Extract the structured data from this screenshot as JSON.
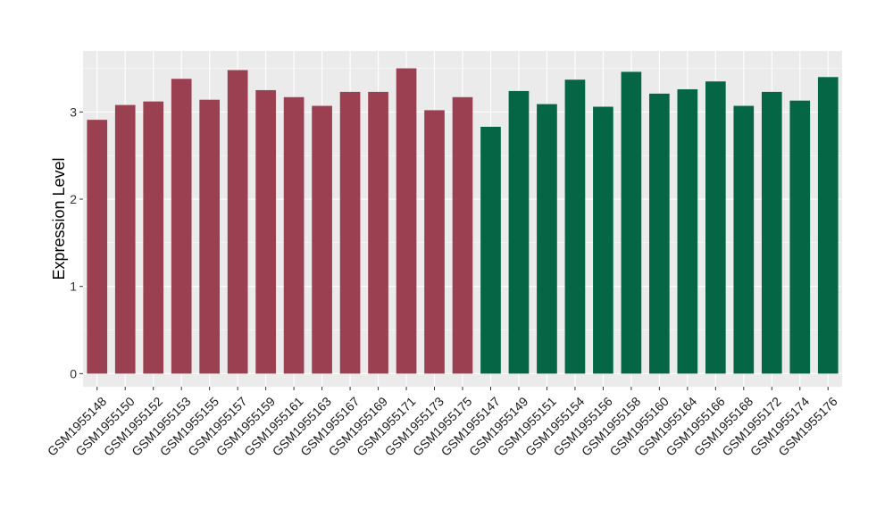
{
  "chart_data": {
    "type": "bar",
    "title": "",
    "xlabel": "",
    "ylabel": "Expression Level",
    "ylim": [
      -0.15,
      3.7
    ],
    "yticks": [
      0,
      1,
      2,
      3
    ],
    "grid": true,
    "legend": "none",
    "background": "#ebebeb",
    "grid_color": "#ffffff",
    "categories": [
      "GSM1955148",
      "GSM1955150",
      "GSM1955152",
      "GSM1955153",
      "GSM1955155",
      "GSM1955157",
      "GSM1955159",
      "GSM1955161",
      "GSM1955163",
      "GSM1955167",
      "GSM1955169",
      "GSM1955171",
      "GSM1955173",
      "GSM1955175",
      "GSM1955147",
      "GSM1955149",
      "GSM1955151",
      "GSM1955154",
      "GSM1955156",
      "GSM1955158",
      "GSM1955160",
      "GSM1955164",
      "GSM1955166",
      "GSM1955168",
      "GSM1955172",
      "GSM1955174",
      "GSM1955176"
    ],
    "values": [
      2.91,
      3.08,
      3.12,
      3.38,
      3.14,
      3.48,
      3.25,
      3.17,
      3.07,
      3.23,
      3.23,
      3.5,
      3.02,
      3.17,
      2.83,
      3.24,
      3.09,
      3.37,
      3.06,
      3.46,
      3.21,
      3.26,
      3.35,
      3.07,
      3.23,
      3.13,
      3.4
    ],
    "colors": [
      "#9b4050",
      "#9b4050",
      "#9b4050",
      "#9b4050",
      "#9b4050",
      "#9b4050",
      "#9b4050",
      "#9b4050",
      "#9b4050",
      "#9b4050",
      "#9b4050",
      "#9b4050",
      "#9b4050",
      "#9b4050",
      "#046645",
      "#046645",
      "#046645",
      "#046645",
      "#046645",
      "#046645",
      "#046645",
      "#046645",
      "#046645",
      "#046645",
      "#046645",
      "#046645",
      "#046645"
    ]
  }
}
